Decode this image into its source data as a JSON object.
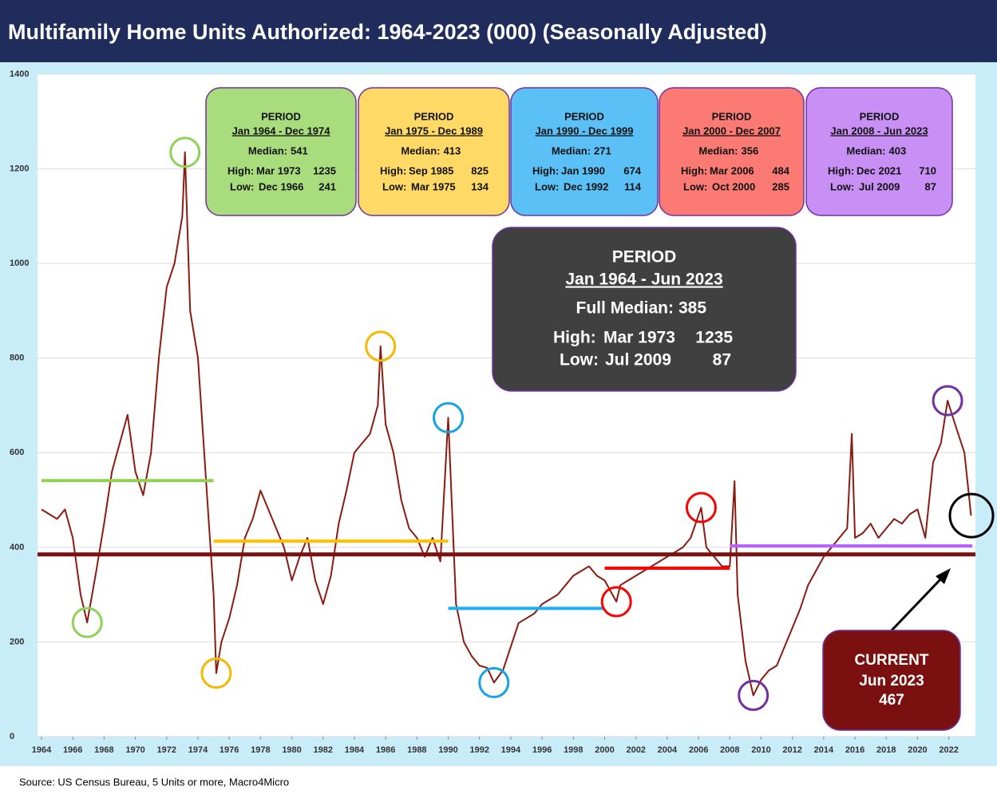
{
  "chart_data": {
    "type": "line",
    "title": "Multifamily Home Units Authorized: 1964-2023 (000) (Seasonally Adjusted)",
    "source": "Source: US Census Bureau, 5 Units or more, Macro4Micro",
    "xlim": [
      1964,
      2023.6
    ],
    "ylim": [
      0,
      1400
    ],
    "xticks": [
      1964,
      1966,
      1968,
      1970,
      1972,
      1974,
      1976,
      1978,
      1980,
      1982,
      1984,
      1986,
      1988,
      1990,
      1992,
      1994,
      1996,
      1998,
      2000,
      2002,
      2004,
      2006,
      2008,
      2010,
      2012,
      2014,
      2016,
      2018,
      2020,
      2022
    ],
    "yticks": [
      0,
      200,
      400,
      600,
      800,
      1000,
      1200,
      1400
    ],
    "grid": true,
    "series": [
      {
        "color": "#8b1a10",
        "x": [
          1964,
          1964.5,
          1965,
          1965.5,
          1966,
          1966.5,
          1966.92,
          1967.5,
          1968,
          1968.5,
          1969,
          1969.5,
          1970,
          1970.5,
          1971,
          1971.5,
          1972,
          1972.5,
          1973,
          1973.17,
          1973.5,
          1974,
          1974.5,
          1975,
          1975.17,
          1975.5,
          1976,
          1976.5,
          1977,
          1977.5,
          1978,
          1978.5,
          1979,
          1979.5,
          1980,
          1980.5,
          1981,
          1981.5,
          1982,
          1982.5,
          1983,
          1983.5,
          1984,
          1984.5,
          1985,
          1985.5,
          1985.67,
          1986,
          1986.5,
          1987,
          1987.5,
          1988,
          1988.5,
          1989,
          1989.5,
          1990,
          1990.5,
          1991,
          1991.5,
          1992,
          1992.5,
          1992.92,
          1993.5,
          1994,
          1994.5,
          1995,
          1995.5,
          1996,
          1996.5,
          1997,
          1997.5,
          1998,
          1998.5,
          1999,
          1999.5,
          2000,
          2000.75,
          2001,
          2001.5,
          2002,
          2002.5,
          2003,
          2003.5,
          2004,
          2004.5,
          2005,
          2005.5,
          2006.17,
          2006.5,
          2007,
          2007.5,
          2008,
          2008.3,
          2008.5,
          2009,
          2009.5,
          2010,
          2010.5,
          2011,
          2011.5,
          2012,
          2012.5,
          2013,
          2013.5,
          2014,
          2014.5,
          2015,
          2015.5,
          2015.8,
          2016,
          2016.5,
          2017,
          2017.5,
          2018,
          2018.5,
          2019,
          2019.5,
          2020,
          2020.5,
          2021,
          2021.5,
          2021.92,
          2022.5,
          2023,
          2023.42
        ],
        "values": [
          480,
          470,
          460,
          480,
          420,
          300,
          241,
          350,
          450,
          560,
          620,
          680,
          560,
          510,
          600,
          800,
          950,
          1000,
          1100,
          1235,
          900,
          800,
          550,
          300,
          134,
          200,
          250,
          320,
          420,
          460,
          520,
          480,
          440,
          400,
          330,
          380,
          420,
          330,
          280,
          340,
          450,
          520,
          600,
          620,
          640,
          700,
          825,
          660,
          600,
          500,
          440,
          420,
          380,
          420,
          370,
          674,
          280,
          200,
          170,
          150,
          145,
          114,
          140,
          190,
          240,
          250,
          260,
          280,
          290,
          300,
          320,
          340,
          350,
          360,
          340,
          330,
          285,
          320,
          330,
          340,
          350,
          360,
          370,
          380,
          390,
          400,
          420,
          484,
          400,
          380,
          360,
          360,
          540,
          300,
          160,
          87,
          120,
          140,
          150,
          190,
          230,
          270,
          320,
          350,
          380,
          400,
          420,
          440,
          640,
          420,
          430,
          450,
          420,
          440,
          460,
          450,
          470,
          480,
          420,
          580,
          620,
          710,
          650,
          600,
          467
        ]
      }
    ],
    "periods": [
      {
        "line_color": "#92d050",
        "box_color": "#a9dc7c",
        "circle_color": "#8ed25a",
        "label": "PERIOD",
        "range": "Jan 1964 - Dec 1974",
        "median_label": "Median:",
        "median": 541,
        "high_label": "High:",
        "high_date": "Mar 1973",
        "high": 1235,
        "low_label": "Low:",
        "low_date": "Dec 1966",
        "low": 241,
        "x_start": 1964,
        "x_end": 1975,
        "high_x": 1973.17,
        "low_x": 1966.92
      },
      {
        "line_color": "#ffc000",
        "box_color": "#ffd966",
        "circle_color": "#f5b800",
        "label": "PERIOD",
        "range": "Jan 1975 - Dec 1989",
        "median_label": "Median:",
        "median": 413,
        "high_label": "High:",
        "high_date": "Sep 1985",
        "high": 825,
        "low_label": "Low:",
        "low_date": "Mar 1975",
        "low": 134,
        "x_start": 1975,
        "x_end": 1990,
        "high_x": 1985.67,
        "low_x": 1975.17
      },
      {
        "line_color": "#1ab0f0",
        "box_color": "#5bc0f5",
        "circle_color": "#17a2e6",
        "label": "PERIOD",
        "range": "Jan 1990 - Dec 1999",
        "median_label": "Median:",
        "median": 271,
        "high_label": "High:",
        "high_date": "Jan 1990",
        "high": 674,
        "low_label": "Low:",
        "low_date": "Dec 1992",
        "low": 114,
        "x_start": 1990,
        "x_end": 2000,
        "high_x": 1990,
        "low_x": 1992.92
      },
      {
        "line_color": "#ff0000",
        "box_color": "#fb7b74",
        "circle_color": "#ff0000",
        "label": "PERIOD",
        "range": "Jan 2000 - Dec 2007",
        "median_label": "Median:",
        "median": 356,
        "high_label": "High:",
        "high_date": "Mar 2006",
        "high": 484,
        "low_label": "Low:",
        "low_date": "Oct 2000",
        "low": 285,
        "x_start": 2000,
        "x_end": 2008,
        "high_x": 2006.17,
        "low_x": 2000.75
      },
      {
        "line_color": "#b660ff",
        "box_color": "#c890f5",
        "circle_color": "#7030a0",
        "label": "PERIOD",
        "range": "Jan 2008 - Jun 2023",
        "median_label": "Median:",
        "median": 403,
        "high_label": "High:",
        "high_date": "Dec 2021",
        "high": 710,
        "low_label": "Low:",
        "low_date": "Jul 2009",
        "low": 87,
        "x_start": 2008,
        "x_end": 2023.5,
        "high_x": 2021.92,
        "low_x": 2009.5
      }
    ],
    "full_period": {
      "line_color": "#7b1010",
      "label": "PERIOD",
      "range": "Jan 1964 - Jun 2023",
      "median_label": "Full Median:",
      "median": 385,
      "high_label": "High:",
      "high_date": "Mar 1973",
      "high": 1235,
      "low_label": "Low:",
      "low_date": "Jul 2009",
      "low": 87
    },
    "current": {
      "label": "CURRENT",
      "date": "Jun 2023",
      "value": 467,
      "x": 2023.42
    }
  }
}
